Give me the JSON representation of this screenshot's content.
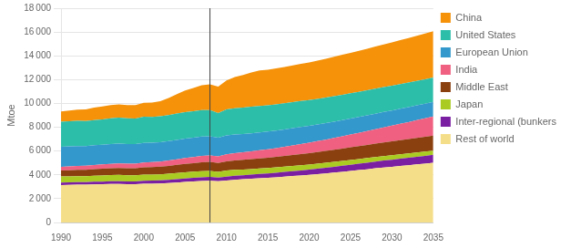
{
  "chart_data": {
    "type": "area",
    "stacked": true,
    "x": [
      1990,
      1991,
      1992,
      1993,
      1994,
      1995,
      1996,
      1997,
      1998,
      1999,
      2000,
      2001,
      2002,
      2003,
      2004,
      2005,
      2006,
      2007,
      2008,
      2009,
      2010,
      2011,
      2012,
      2013,
      2014,
      2015,
      2016,
      2017,
      2018,
      2019,
      2020,
      2021,
      2022,
      2023,
      2024,
      2025,
      2026,
      2027,
      2028,
      2029,
      2030,
      2031,
      2032,
      2033,
      2034,
      2035
    ],
    "series": [
      {
        "name": "Rest of world",
        "color": "#F5DE8A",
        "values": [
          3150,
          3160,
          3170,
          3180,
          3200,
          3210,
          3230,
          3240,
          3220,
          3210,
          3250,
          3260,
          3280,
          3310,
          3360,
          3410,
          3450,
          3490,
          3510,
          3460,
          3530,
          3590,
          3630,
          3670,
          3710,
          3750,
          3800,
          3850,
          3900,
          3950,
          4000,
          4060,
          4120,
          4190,
          4260,
          4330,
          4400,
          4470,
          4550,
          4620,
          4680,
          4750,
          4810,
          4880,
          4940,
          5010
        ]
      },
      {
        "name": "Inter-regional (bunkers",
        "color": "#7B1FA2",
        "values": [
          200,
          205,
          210,
          215,
          220,
          225,
          230,
          235,
          235,
          240,
          250,
          255,
          260,
          270,
          280,
          290,
          300,
          310,
          315,
          310,
          325,
          335,
          340,
          350,
          360,
          370,
          380,
          395,
          410,
          425,
          440,
          460,
          475,
          490,
          505,
          520,
          535,
          550,
          565,
          580,
          595,
          610,
          625,
          640,
          655,
          670
        ]
      },
      {
        "name": "Japan",
        "color": "#AACC22",
        "values": [
          510,
          510,
          510,
          500,
          510,
          515,
          520,
          520,
          515,
          510,
          520,
          510,
          510,
          515,
          520,
          520,
          515,
          515,
          510,
          490,
          510,
          495,
          480,
          470,
          465,
          458,
          452,
          446,
          440,
          435,
          428,
          422,
          416,
          410,
          405,
          400,
          395,
          390,
          385,
          380,
          376,
          372,
          368,
          364,
          360,
          356
        ]
      },
      {
        "name": "Middle East",
        "color": "#8B4010",
        "values": [
          500,
          512,
          525,
          535,
          548,
          562,
          575,
          588,
          590,
          592,
          615,
          628,
          642,
          662,
          682,
          705,
          722,
          745,
          752,
          745,
          775,
          792,
          810,
          828,
          845,
          863,
          880,
          900,
          920,
          940,
          960,
          980,
          1000,
          1020,
          1040,
          1060,
          1080,
          1100,
          1120,
          1140,
          1160,
          1180,
          1200,
          1220,
          1240,
          1260
        ]
      },
      {
        "name": "India",
        "color": "#F06080",
        "values": [
          320,
          328,
          336,
          344,
          353,
          362,
          372,
          382,
          385,
          392,
          408,
          418,
          430,
          445,
          465,
          485,
          505,
          528,
          545,
          552,
          580,
          608,
          632,
          658,
          684,
          712,
          740,
          772,
          805,
          840,
          875,
          910,
          948,
          988,
          1030,
          1073,
          1118,
          1165,
          1215,
          1267,
          1320,
          1375,
          1432,
          1490,
          1550,
          1610
        ]
      },
      {
        "name": "European Union",
        "color": "#3399CC",
        "values": [
          1680,
          1672,
          1665,
          1648,
          1655,
          1648,
          1665,
          1660,
          1648,
          1642,
          1642,
          1625,
          1614,
          1625,
          1632,
          1638,
          1632,
          1632,
          1610,
          1558,
          1590,
          1568,
          1536,
          1520,
          1504,
          1488,
          1472,
          1459,
          1445,
          1430,
          1414,
          1400,
          1386,
          1372,
          1358,
          1345,
          1332,
          1319,
          1306,
          1293,
          1280,
          1268,
          1256,
          1244,
          1232,
          1220
        ]
      },
      {
        "name": "United States",
        "color": "#2DBEAA",
        "values": [
          2100,
          2110,
          2120,
          2100,
          2120,
          2138,
          2165,
          2175,
          2158,
          2152,
          2195,
          2172,
          2178,
          2184,
          2205,
          2216,
          2216,
          2226,
          2194,
          2079,
          2194,
          2205,
          2216,
          2226,
          2226,
          2205,
          2200,
          2194,
          2188,
          2177,
          2161,
          2155,
          2148,
          2140,
          2132,
          2124,
          2116,
          2108,
          2100,
          2092,
          2084,
          2076,
          2068,
          2060,
          2052,
          2045
        ]
      },
      {
        "name": "China",
        "color": "#F5920A",
        "values": [
          870,
          905,
          940,
          975,
          1040,
          1082,
          1105,
          1118,
          1105,
          1128,
          1170,
          1205,
          1270,
          1435,
          1640,
          1820,
          1960,
          2080,
          2160,
          2210,
          2430,
          2620,
          2750,
          2880,
          2970,
          2992,
          3018,
          3052,
          3088,
          3125,
          3168,
          3212,
          3258,
          3306,
          3355,
          3395,
          3440,
          3488,
          3538,
          3582,
          3630,
          3680,
          3732,
          3786,
          3842,
          3900
        ]
      }
    ],
    "ylabel": "Mtoe",
    "xlim": [
      1990,
      2035
    ],
    "xticks": [
      1990,
      1995,
      2000,
      2005,
      2010,
      2015,
      2020,
      2025,
      2030,
      2035
    ],
    "ylim": [
      0,
      18000
    ],
    "yticks": [
      0,
      {
        "value": 2000,
        "label": "2 000"
      },
      {
        "value": 4000,
        "label": "4 000"
      },
      {
        "value": 6000,
        "label": "6 000"
      },
      {
        "value": 8000,
        "label": "8 000"
      },
      {
        "value": 10000,
        "label": "10 000"
      },
      {
        "value": 12000,
        "label": "12 000"
      },
      {
        "value": 14000,
        "label": "14 000"
      },
      {
        "value": 16000,
        "label": "16 000"
      },
      {
        "value": 18000,
        "label": "18 000"
      }
    ],
    "vline": {
      "value": 2008,
      "color": "#444444"
    },
    "grid": true,
    "legend": "right"
  }
}
